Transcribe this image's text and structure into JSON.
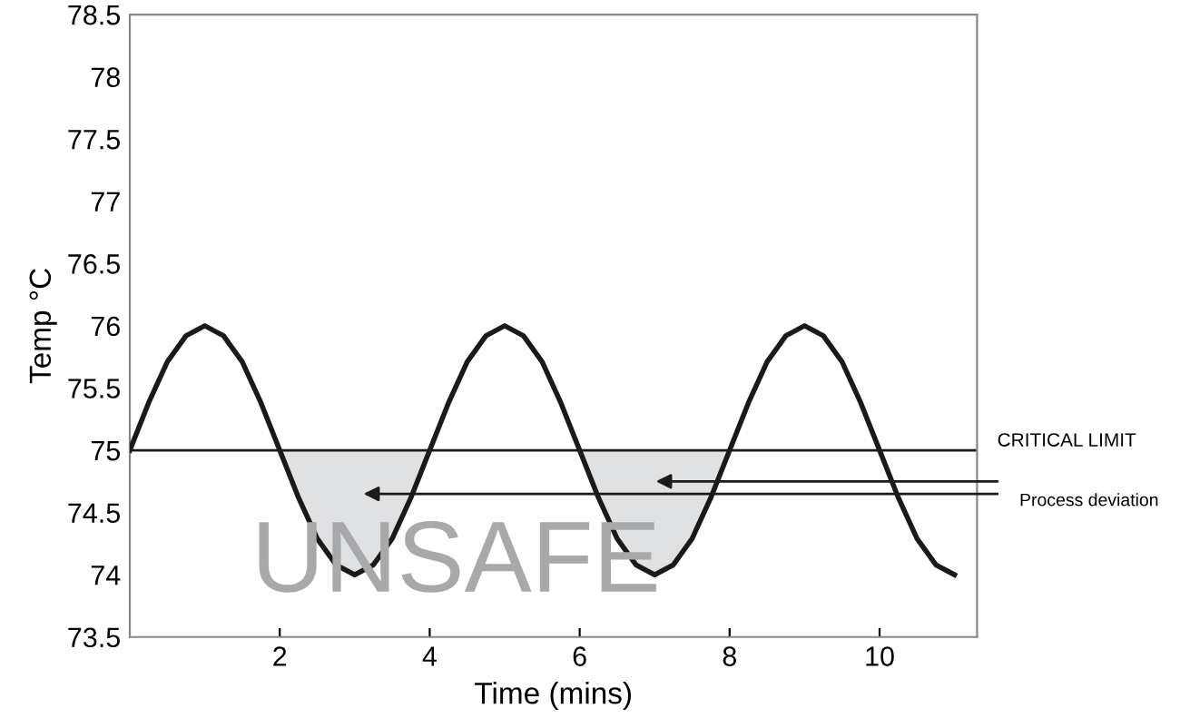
{
  "chart_data": {
    "type": "line",
    "xlabel": "Time (mins)",
    "ylabel": "Temp °C",
    "x": [
      0,
      0.25,
      0.5,
      0.75,
      1,
      1.25,
      1.5,
      1.75,
      2,
      2.25,
      2.5,
      2.75,
      3,
      3.25,
      3.5,
      3.75,
      4,
      4.25,
      4.5,
      4.75,
      5,
      5.25,
      5.5,
      5.75,
      6,
      6.25,
      6.5,
      6.75,
      7,
      7.25,
      7.5,
      7.75,
      8,
      8.25,
      8.5,
      8.75,
      9,
      9.25,
      9.5,
      9.75,
      10,
      10.25,
      10.5,
      10.75,
      11
    ],
    "series": [
      {
        "color": "#1a1a1a",
        "values": [
          75,
          75.38,
          75.71,
          75.92,
          76,
          75.92,
          75.71,
          75.38,
          75,
          74.62,
          74.29,
          74.08,
          74,
          74.08,
          74.29,
          74.62,
          75,
          75.38,
          75.71,
          75.92,
          76,
          75.92,
          75.71,
          75.38,
          75,
          74.62,
          74.29,
          74.08,
          74,
          74.08,
          74.29,
          74.62,
          75,
          75.38,
          75.71,
          75.92,
          76,
          75.92,
          75.71,
          75.38,
          75,
          74.62,
          74.29,
          74.08,
          74
        ],
        "lower": [
          null,
          null,
          null,
          null,
          null,
          null,
          null,
          null,
          75,
          74.62,
          74.29,
          74.08,
          74,
          74.08,
          74.29,
          74.62,
          75,
          null,
          null,
          null,
          null,
          null,
          null,
          null,
          75,
          74.62,
          74.29,
          74.08,
          74,
          74.08,
          74.29,
          74.62,
          75,
          null,
          null,
          null,
          null,
          null,
          null,
          null,
          null,
          null,
          null,
          null,
          null
        ],
        "upper": [
          null,
          null,
          null,
          null,
          null,
          null,
          null,
          null,
          75,
          75,
          75,
          75,
          75,
          75,
          75,
          75,
          75,
          null,
          null,
          null,
          null,
          null,
          null,
          null,
          75,
          75,
          75,
          75,
          75,
          75,
          75,
          75,
          75,
          null,
          null,
          null,
          null,
          null,
          null,
          null,
          null,
          null,
          null,
          null,
          null
        ]
      }
    ],
    "xlim": [
      0,
      11.3
    ],
    "xticks": [
      2,
      4,
      6,
      8,
      10
    ],
    "ylim": [
      73.5,
      78.5
    ],
    "yticks": [
      73.5,
      74,
      74.5,
      75,
      75.5,
      76,
      76.5,
      77,
      77.5,
      78,
      78.5
    ],
    "ref_lines": [
      {
        "axis": "y",
        "value": 75,
        "label": "CRITICAL LIMIT",
        "color": "#1a1a1a"
      }
    ],
    "annotations": [
      "Process deviation",
      "UNSAFE"
    ],
    "grid": false,
    "legend": false
  }
}
